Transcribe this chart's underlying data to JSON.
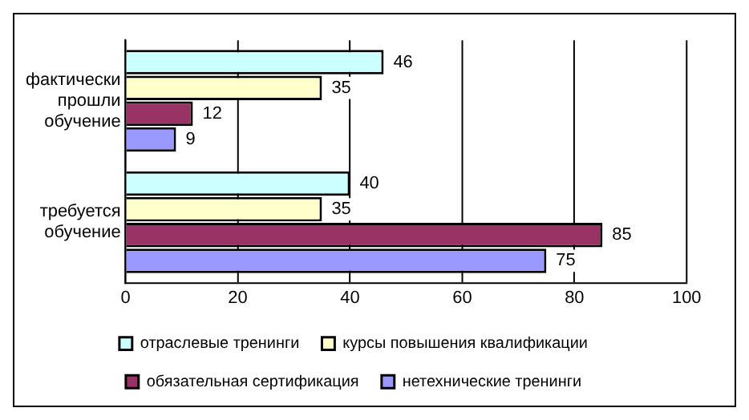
{
  "chart_data": {
    "type": "bar",
    "orientation": "horizontal",
    "categories": [
      "фактически прошли обучение",
      "требуется обучение"
    ],
    "series": [
      {
        "name": "отраслевые тренинги",
        "color": "#ccffff",
        "values": [
          46,
          40
        ]
      },
      {
        "name": "курсы повышения квалификации",
        "color": "#ffffcc",
        "values": [
          35,
          35
        ]
      },
      {
        "name": "обязательная сертификация",
        "color": "#993366",
        "values": [
          12,
          85
        ]
      },
      {
        "name": "нетехнические тренинги",
        "color": "#9999ff",
        "values": [
          9,
          75
        ]
      }
    ],
    "xlim": [
      0,
      100
    ],
    "xticks": [
      0,
      20,
      40,
      60,
      80,
      100
    ],
    "grid": "x",
    "legend": "bottom",
    "data_labels": true
  }
}
